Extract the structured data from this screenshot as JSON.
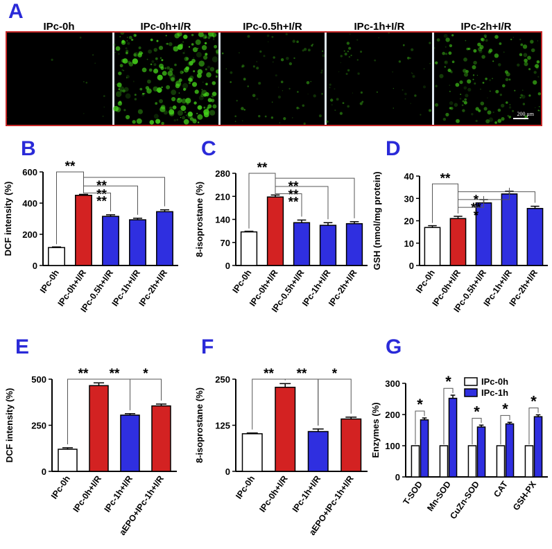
{
  "panel_A": {
    "label": "A",
    "headers": [
      "IPc-0h",
      "IPc-0h+I/R",
      "IPc-0.5h+I/R",
      "IPc-1h+I/R",
      "IPc-2h+I/R"
    ],
    "fluorescence_level": [
      0.02,
      0.9,
      0.25,
      0.2,
      0.55
    ],
    "scale_bar_text": "200 μm"
  },
  "colors": {
    "white_bar": "#ffffff",
    "red_bar": "#d32222",
    "blue_bar": "#2f2fe0",
    "panel_label": "#2a2ad8",
    "fluorescence": "#44d11a"
  },
  "chart_data": [
    {
      "label": "B",
      "type": "bar",
      "ylabel": "DCF intensity (%)",
      "ylim": [
        0,
        600
      ],
      "yticks": [
        0,
        200,
        400,
        600
      ],
      "categories": [
        "IPc-0h",
        "IPc-0h+I/R",
        "IPc-0.5h+I/R",
        "IPc-1h+I/R",
        "IPc-2h+I/R"
      ],
      "values": [
        115,
        450,
        315,
        293,
        345
      ],
      "errors": [
        4,
        6,
        10,
        10,
        12
      ],
      "bar_colors": [
        "white",
        "red",
        "blue",
        "blue",
        "blue"
      ],
      "brackets": [
        {
          "from": 0,
          "to": 1,
          "y": 600,
          "text": "**"
        },
        {
          "from": 1,
          "to": 4,
          "y": 565,
          "text": "**"
        },
        {
          "from": 1,
          "to": 3,
          "y": 510,
          "text": "**"
        },
        {
          "from": 1,
          "to": 2,
          "y": 465,
          "text": "**"
        }
      ]
    },
    {
      "label": "C",
      "type": "bar",
      "ylabel": "8-isoprostane (%)",
      "ylim": [
        0,
        280
      ],
      "yticks": [
        0,
        70,
        140,
        210,
        280
      ],
      "categories": [
        "IPc-0h",
        "IPc-0h+I/R",
        "IPc-0.5h+I/R",
        "IPc-1h+I/R",
        "IPc-2h+I/R"
      ],
      "values": [
        102,
        208,
        130,
        122,
        127
      ],
      "errors": [
        2,
        6,
        8,
        8,
        6
      ],
      "bar_colors": [
        "white",
        "red",
        "blue",
        "blue",
        "blue"
      ],
      "brackets": [
        {
          "from": 0,
          "to": 1,
          "y": 280,
          "text": "**"
        },
        {
          "from": 1,
          "to": 4,
          "y": 265,
          "text": "**"
        },
        {
          "from": 1,
          "to": 3,
          "y": 240,
          "text": "**"
        },
        {
          "from": 1,
          "to": 2,
          "y": 218,
          "text": "**"
        }
      ]
    },
    {
      "label": "D",
      "type": "bar",
      "ylabel": "GSH (nmol/mg protein)",
      "ylim": [
        0,
        40
      ],
      "yticks": [
        0,
        10,
        20,
        30,
        40
      ],
      "categories": [
        "IPc-0h",
        "IPc-0h+I/R",
        "IPc-0.5h+I/R",
        "IPc-1h+I/R",
        "IPc-2h+I/R"
      ],
      "values": [
        17,
        21,
        28,
        32,
        25.5
      ],
      "errors": [
        0.8,
        1.0,
        1.5,
        1.2,
        1.0
      ],
      "bar_colors": [
        "white",
        "red",
        "blue",
        "blue",
        "blue"
      ],
      "brackets": [
        {
          "from": 0,
          "to": 1,
          "y": 36.5,
          "text": "**"
        },
        {
          "from": 1,
          "to": 4,
          "y": 33,
          "text": "*"
        },
        {
          "from": 1,
          "to": 3,
          "y": 29.5,
          "text": "**"
        },
        {
          "from": 1,
          "to": 2,
          "y": 26,
          "text": "*"
        }
      ]
    },
    {
      "label": "E",
      "type": "bar",
      "ylabel": "DCF intensity (%)",
      "ylim": [
        0,
        500
      ],
      "yticks": [
        0,
        250,
        500
      ],
      "categories": [
        "IPc-0h",
        "IPc-0h+I/R",
        "IPc-1h+I/R",
        "aEPO+IPc-1h+I/R"
      ],
      "values": [
        120,
        465,
        305,
        355
      ],
      "errors": [
        8,
        15,
        8,
        10
      ],
      "bar_colors": [
        "white",
        "red",
        "blue",
        "red"
      ],
      "brackets": [
        {
          "from": 0,
          "to": 1,
          "y": 500,
          "text": "**"
        },
        {
          "from": 1,
          "to": 2,
          "y": 500,
          "text": "**"
        },
        {
          "from": 2,
          "to": 3,
          "y": 500,
          "text": "*"
        }
      ]
    },
    {
      "label": "F",
      "type": "bar",
      "ylabel": "8-isoprostane (%)",
      "ylim": [
        0,
        250
      ],
      "yticks": [
        0,
        125,
        250
      ],
      "categories": [
        "IPc-0h",
        "IPc-0h+I/R",
        "IPc-1h+I/R",
        "aEPO+IPc-1h+I/R"
      ],
      "values": [
        102,
        228,
        108,
        142
      ],
      "errors": [
        2,
        10,
        7,
        5
      ],
      "bar_colors": [
        "white",
        "red",
        "blue",
        "red"
      ],
      "brackets": [
        {
          "from": 0,
          "to": 1,
          "y": 250,
          "text": "**"
        },
        {
          "from": 1,
          "to": 2,
          "y": 250,
          "text": "**"
        },
        {
          "from": 2,
          "to": 3,
          "y": 250,
          "text": "*"
        }
      ]
    },
    {
      "label": "G",
      "type": "bar",
      "ylabel": "Enzymes (%)",
      "ylim": [
        0,
        300
      ],
      "yticks": [
        0,
        100,
        200,
        300
      ],
      "categories": [
        "T-SOD",
        "Mn-SOD",
        "CuZn-SOD",
        "CAT",
        "GSH-PX"
      ],
      "series": [
        {
          "name": "IPc-0h",
          "values": [
            100,
            100,
            100,
            100,
            100
          ],
          "errors": [
            0,
            0,
            0,
            0,
            0
          ],
          "color": "white"
        },
        {
          "name": "IPc-1h",
          "values": [
            183,
            252,
            160,
            170,
            193
          ],
          "errors": [
            6,
            10,
            6,
            5,
            6
          ],
          "color": "blue"
        }
      ],
      "sig": [
        "*",
        "*",
        "*",
        "*",
        "*"
      ],
      "legend": "top-right"
    }
  ]
}
